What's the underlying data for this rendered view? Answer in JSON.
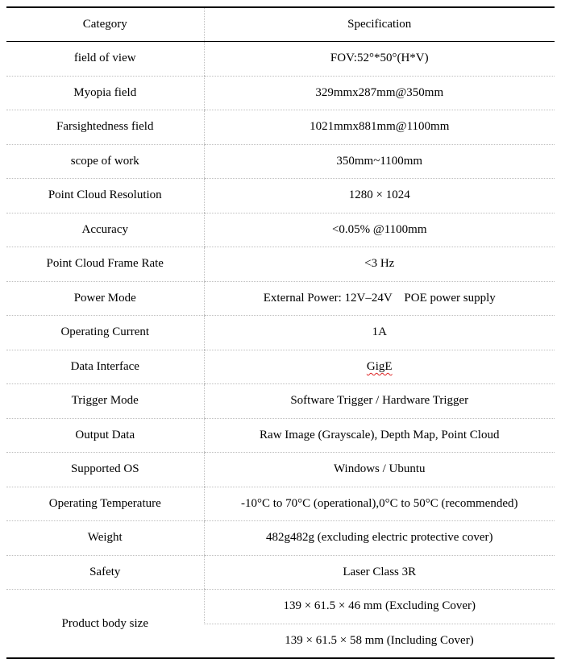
{
  "table": {
    "header": {
      "category": "Category",
      "specification": "Specification"
    },
    "rows": [
      {
        "category": "field of view",
        "value": "FOV:52°*50°(H*V)"
      },
      {
        "category": "Myopia field",
        "value": "329mmx287mm@350mm"
      },
      {
        "category": "Farsightedness field",
        "value": "1021mmx881mm@1100mm"
      },
      {
        "category": "scope of work",
        "value": "350mm~1100mm"
      },
      {
        "category": "Point Cloud Resolution",
        "value": "1280 × 1024"
      },
      {
        "category": "Accuracy",
        "value": "<0.05% @1100mm"
      },
      {
        "category": "Point Cloud Frame Rate",
        "value": "<3 Hz"
      },
      {
        "category": "Power Mode",
        "value": "External Power: 12V–24V    POE power supply"
      },
      {
        "category": "Operating Current",
        "value": "1A"
      },
      {
        "category": "Data Interface",
        "value": "GigE"
      },
      {
        "category": "Trigger Mode",
        "value": "Software Trigger / Hardware Trigger"
      },
      {
        "category": "Output Data",
        "value": "Raw Image (Grayscale), Depth Map, Point Cloud"
      },
      {
        "category": "Supported OS",
        "value": "Windows / Ubuntu"
      },
      {
        "category": "Operating Temperature",
        "value": "-10°C to 70°C (operational),0°C to 50°C (recommended)"
      },
      {
        "category": "Weight",
        "value": "482g482g (excluding electric protective cover)"
      },
      {
        "category": "Safety",
        "value": "Laser Class 3R"
      }
    ],
    "product_body_size": {
      "category": "Product body size",
      "values": [
        "139 × 61.5 × 46 mm (Excluding Cover)",
        "139 × 61.5 × 58 mm (Including Cover)"
      ]
    }
  }
}
